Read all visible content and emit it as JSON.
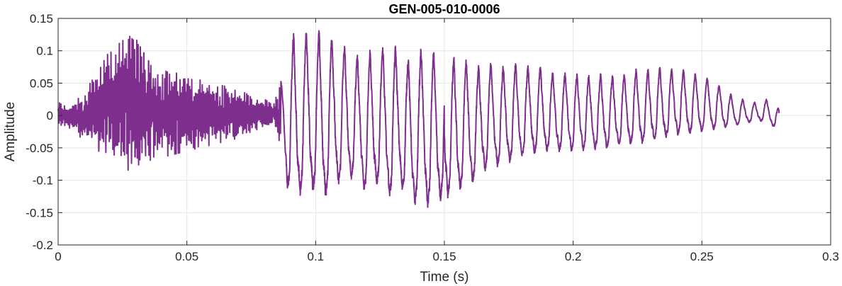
{
  "chart_data": {
    "type": "line",
    "title": "GEN-005-010-0006",
    "xlabel": "Time (s)",
    "ylabel": "Amplitude",
    "xlim": [
      0,
      0.3
    ],
    "ylim": [
      -0.2,
      0.15
    ],
    "xticks": [
      0,
      0.05,
      0.1,
      0.15,
      0.2,
      0.25,
      0.3
    ],
    "xtick_labels": [
      "0",
      "0.05",
      "0.1",
      "0.15",
      "0.2",
      "0.25",
      "0.3"
    ],
    "yticks": [
      -0.2,
      -0.15,
      -0.1,
      -0.05,
      0,
      0.05,
      0.1,
      0.15
    ],
    "ytick_labels": [
      "-0.2",
      "-0.15",
      "-0.1",
      "-0.05",
      "0",
      "0.05",
      "0.1",
      "0.15"
    ],
    "grid": true,
    "line_color": "#7e2f8e",
    "series": [
      {
        "name": "",
        "x": [
          0,
          0.005,
          0.01,
          0.015,
          0.02,
          0.025,
          0.0275,
          0.03,
          0.035,
          0.04,
          0.045,
          0.05,
          0.055,
          0.06,
          0.065,
          0.07,
          0.075,
          0.08,
          0.084,
          0.087,
          0.089,
          0.0925,
          0.095,
          0.0975,
          0.1,
          0.1025,
          0.105,
          0.1075,
          0.11,
          0.1125,
          0.115,
          0.1175,
          0.12,
          0.1225,
          0.125,
          0.1275,
          0.13,
          0.1325,
          0.135,
          0.1375,
          0.14,
          0.1425,
          0.145,
          0.1475,
          0.15,
          0.1525,
          0.155,
          0.1575,
          0.16,
          0.1625,
          0.165,
          0.1675,
          0.17,
          0.1725,
          0.175,
          0.1775,
          0.18,
          0.1825,
          0.185,
          0.1875,
          0.19,
          0.1925,
          0.195,
          0.1975,
          0.2,
          0.2025,
          0.205,
          0.2075,
          0.21,
          0.2125,
          0.215,
          0.2175,
          0.22,
          0.2225,
          0.225,
          0.2275,
          0.23,
          0.2325,
          0.235,
          0.2375,
          0.24,
          0.2425,
          0.245,
          0.2475,
          0.25,
          0.2525,
          0.255,
          0.2575,
          0.26,
          0.2625,
          0.265,
          0.2675,
          0.27,
          0.2725,
          0.275,
          0.2775,
          0.28
        ],
        "ymax": [
          0.02,
          0.015,
          0.035,
          0.065,
          0.1,
          0.115,
          0.13,
          0.12,
          0.085,
          0.07,
          0.075,
          0.06,
          0.055,
          0.05,
          0.045,
          0.04,
          0.03,
          0.025,
          0.02,
          0.06,
          0.11,
          0.13,
          0.12,
          0.135,
          0.125,
          0.13,
          0.11,
          0.135,
          0.11,
          0.1,
          0.085,
          0.1,
          0.09,
          0.11,
          0.105,
          0.1,
          0.1,
          0.11,
          0.09,
          0.085,
          0.09,
          0.12,
          0.1,
          0.09,
          0.1,
          0.09,
          0.085,
          0.08,
          0.09,
          0.07,
          0.085,
          0.08,
          0.08,
          0.075,
          0.075,
          0.08,
          0.07,
          0.075,
          0.07,
          0.075,
          0.07,
          0.065,
          0.065,
          0.065,
          0.06,
          0.065,
          0.06,
          0.065,
          0.062,
          0.066,
          0.06,
          0.068,
          0.062,
          0.07,
          0.07,
          0.072,
          0.07,
          0.075,
          0.07,
          0.072,
          0.07,
          0.07,
          0.065,
          0.065,
          0.055,
          0.058,
          0.045,
          0.048,
          0.035,
          0.03,
          0.025,
          0.025,
          0.02,
          0.022,
          0.025,
          0.02,
          0.01
        ],
        "ymin": [
          -0.015,
          -0.02,
          -0.04,
          -0.055,
          -0.065,
          -0.08,
          -0.085,
          -0.085,
          -0.07,
          -0.065,
          -0.06,
          -0.055,
          -0.05,
          -0.045,
          -0.04,
          -0.035,
          -0.025,
          -0.02,
          -0.015,
          -0.06,
          -0.14,
          -0.165,
          -0.14,
          -0.15,
          -0.145,
          -0.16,
          -0.15,
          -0.14,
          -0.13,
          -0.12,
          -0.12,
          -0.13,
          -0.15,
          -0.14,
          -0.13,
          -0.14,
          -0.16,
          -0.135,
          -0.15,
          -0.17,
          -0.155,
          -0.175,
          -0.165,
          -0.16,
          -0.155,
          -0.15,
          -0.15,
          -0.13,
          -0.13,
          -0.12,
          -0.11,
          -0.1,
          -0.095,
          -0.1,
          -0.09,
          -0.085,
          -0.08,
          -0.075,
          -0.075,
          -0.072,
          -0.07,
          -0.07,
          -0.07,
          -0.068,
          -0.07,
          -0.065,
          -0.07,
          -0.065,
          -0.068,
          -0.065,
          -0.065,
          -0.06,
          -0.062,
          -0.058,
          -0.06,
          -0.055,
          -0.055,
          -0.05,
          -0.048,
          -0.045,
          -0.042,
          -0.04,
          -0.04,
          -0.035,
          -0.035,
          -0.03,
          -0.03,
          -0.025,
          -0.025,
          -0.02,
          -0.02,
          -0.015,
          -0.015,
          -0.012,
          -0.015,
          -0.02,
          -0.035
        ]
      }
    ]
  }
}
